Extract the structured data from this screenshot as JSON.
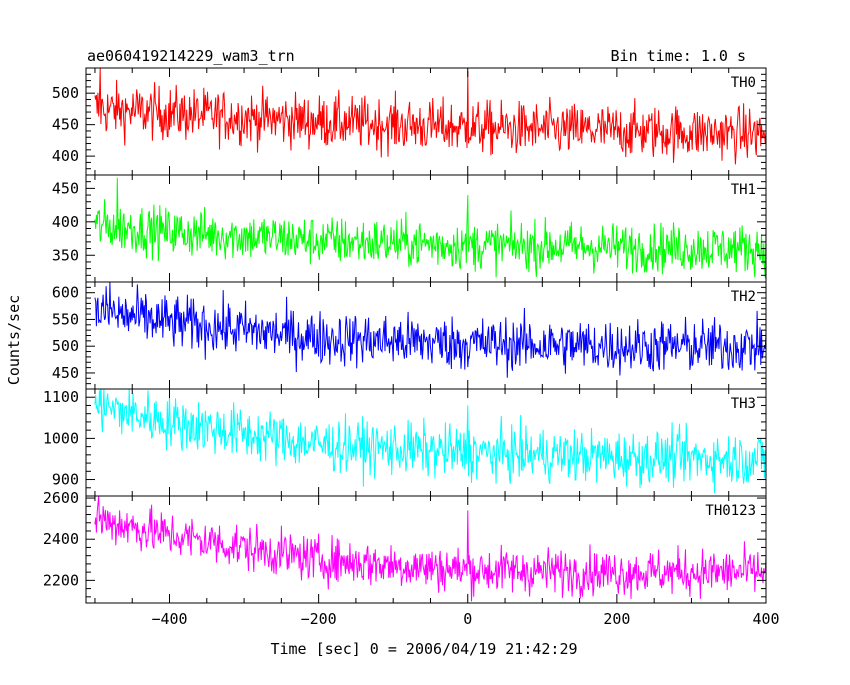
{
  "chart_data": {
    "type": "line",
    "title_left": "ae060419214229_wam3_trn",
    "title_right": "Bin time: 1.0 s",
    "xlabel": "Time [sec] 0 = 2006/04/19 21:42:29",
    "ylabel": "Counts/sec",
    "xlim": [
      -512,
      400
    ],
    "x_ticks": [
      -400,
      -200,
      0,
      200,
      400
    ],
    "bin_time": 1.0,
    "panels": [
      {
        "name": "TH0",
        "color": "#ff0000",
        "ylim": [
          370,
          540
        ],
        "y_ticks": [
          400,
          450,
          500
        ],
        "trend": {
          "x": [
            -500,
            -400,
            -200,
            0,
            200,
            400
          ],
          "y": [
            475,
            468,
            455,
            445,
            440,
            435
          ]
        },
        "noise": 21,
        "spikes": [
          {
            "x": -493,
            "y": 540
          },
          {
            "x": 0,
            "y": 535
          }
        ]
      },
      {
        "name": "TH1",
        "color": "#00ff00",
        "ylim": [
          310,
          470
        ],
        "y_ticks": [
          350,
          400,
          450
        ],
        "trend": {
          "x": [
            -500,
            -400,
            -200,
            0,
            200,
            400
          ],
          "y": [
            395,
            385,
            372,
            365,
            362,
            360
          ]
        },
        "noise": 18,
        "spikes": [
          {
            "x": -470,
            "y": 466
          },
          {
            "x": 0,
            "y": 440
          }
        ]
      },
      {
        "name": "TH2",
        "color": "#0000ff",
        "ylim": [
          420,
          620
        ],
        "y_ticks": [
          450,
          500,
          550,
          600
        ],
        "trend": {
          "x": [
            -500,
            -400,
            -200,
            0,
            200,
            400
          ],
          "y": [
            565,
            545,
            515,
            505,
            500,
            500
          ]
        },
        "noise": 25,
        "spikes": [
          {
            "x": -480,
            "y": 620
          }
        ]
      },
      {
        "name": "TH3",
        "color": "#00ffff",
        "ylim": [
          860,
          1120
        ],
        "y_ticks": [
          900,
          1000,
          1100
        ],
        "trend": {
          "x": [
            -500,
            -400,
            -200,
            0,
            200,
            400
          ],
          "y": [
            1080,
            1040,
            985,
            965,
            955,
            950
          ]
        },
        "noise": 32,
        "spikes": [
          {
            "x": -488,
            "y": 1120
          },
          {
            "x": 0,
            "y": 1080
          }
        ]
      },
      {
        "name": "TH0123",
        "color": "#ff00ff",
        "ylim": [
          2090,
          2610
        ],
        "y_ticks": [
          2200,
          2400,
          2600
        ],
        "trend": {
          "x": [
            -500,
            -400,
            -200,
            0,
            200,
            400
          ],
          "y": [
            2500,
            2420,
            2300,
            2250,
            2240,
            2240
          ]
        },
        "noise": 55,
        "spikes": [
          {
            "x": -495,
            "y": 2610
          },
          {
            "x": 0,
            "y": 2540
          }
        ]
      }
    ]
  }
}
